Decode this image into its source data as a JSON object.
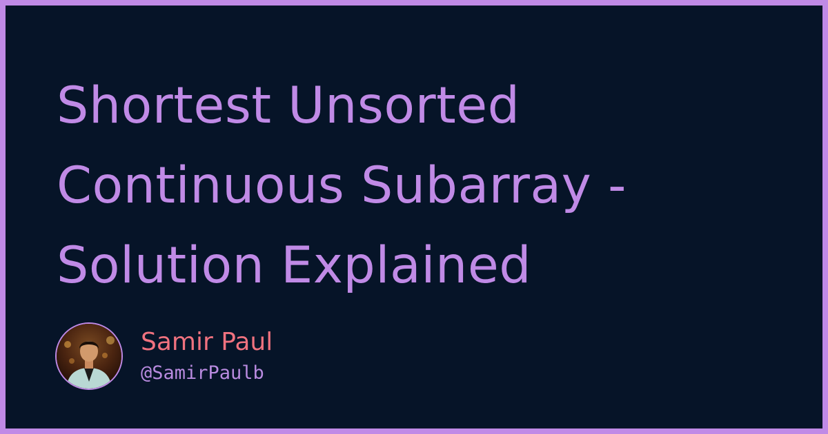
{
  "title": {
    "lines": [
      "Shortest Unsorted",
      "Continuous Subarray -",
      "Solution Explained"
    ]
  },
  "author": {
    "name": "Samir Paul",
    "handle": "@SamirPaulb",
    "avatar_icon": "person-portrait-icon"
  },
  "colors": {
    "background": "#061428",
    "frame": "#c08ae6",
    "title": "#c08ae6",
    "author_name": "#f0727f",
    "author_handle": "#b98be0"
  }
}
